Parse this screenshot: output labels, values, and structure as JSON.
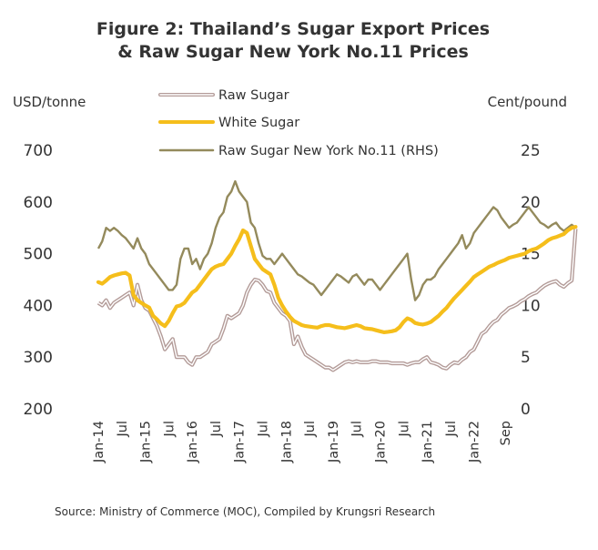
{
  "chart_data": {
    "type": "line",
    "title": "Figure 2: Thailand’s Sugar Export Prices",
    "title_line2": "& Raw Sugar New York No.11 Prices",
    "y_left_label": "USD/tonne",
    "y_right_label": "Cent/pound",
    "y_left_lim": [
      200,
      700
    ],
    "y_left_ticks": [
      "200",
      "300",
      "400",
      "500",
      "600",
      "700"
    ],
    "y_right_lim": [
      0,
      25
    ],
    "y_right_ticks": [
      "0",
      "5",
      "10",
      "15",
      "20",
      "25"
    ],
    "x_tick_labels": [
      "Jan-14",
      "Jul",
      "Jan-15",
      "Jul",
      "Jan-16",
      "Jul",
      "Jan-17",
      "Jul",
      "Jan-18",
      "Jul",
      "Jan-19",
      "Jul",
      "Jan-20",
      "Jul",
      "Jan-21",
      "Jul",
      "Jan-22",
      "Sep"
    ],
    "x_start": "2014-01",
    "x_end": "2022-09",
    "legend_position": "top-center",
    "grid": false,
    "source": "Source: Ministry of Commerce (MOC), Compiled by Krungsri Research",
    "colors": {
      "raw": "#b39b98",
      "white": "#f5be1b",
      "ny11": "#948a5c",
      "text": "#333333"
    },
    "series": [
      {
        "name": "Raw Sugar",
        "axis": "left",
        "style": "double-line",
        "values": [
          405,
          400,
          410,
          395,
          405,
          410,
          415,
          420,
          425,
          400,
          440,
          410,
          395,
          390,
          375,
          360,
          340,
          315,
          325,
          335,
          300,
          300,
          300,
          290,
          285,
          300,
          300,
          305,
          310,
          325,
          330,
          335,
          355,
          380,
          375,
          380,
          385,
          400,
          425,
          440,
          450,
          448,
          440,
          428,
          425,
          405,
          395,
          385,
          380,
          370,
          325,
          340,
          320,
          305,
          300,
          295,
          290,
          285,
          280,
          280,
          275,
          280,
          285,
          290,
          292,
          290,
          292,
          290,
          290,
          290,
          292,
          292,
          290,
          290,
          290,
          288,
          288,
          288,
          288,
          285,
          288,
          290,
          290,
          296,
          300,
          290,
          288,
          285,
          280,
          278,
          285,
          290,
          288,
          295,
          300,
          310,
          315,
          330,
          345,
          350,
          360,
          368,
          372,
          382,
          388,
          395,
          398,
          402,
          408,
          412,
          418,
          422,
          425,
          432,
          438,
          442,
          445,
          447,
          440,
          436,
          443,
          448,
          548
        ]
      },
      {
        "name": "White Sugar",
        "axis": "left",
        "style": "thick",
        "values": [
          445,
          442,
          448,
          455,
          458,
          460,
          462,
          463,
          458,
          420,
          410,
          405,
          400,
          396,
          380,
          373,
          365,
          360,
          370,
          385,
          398,
          400,
          405,
          415,
          425,
          430,
          440,
          450,
          460,
          470,
          475,
          478,
          480,
          490,
          500,
          515,
          528,
          545,
          540,
          515,
          490,
          480,
          470,
          465,
          460,
          440,
          415,
          400,
          388,
          378,
          370,
          366,
          362,
          360,
          359,
          358,
          357,
          360,
          362,
          362,
          360,
          358,
          357,
          356,
          358,
          360,
          362,
          360,
          356,
          355,
          354,
          352,
          350,
          348,
          349,
          350,
          352,
          358,
          368,
          375,
          372,
          366,
          364,
          363,
          365,
          368,
          374,
          380,
          388,
          395,
          405,
          414,
          422,
          430,
          438,
          446,
          455,
          460,
          465,
          470,
          475,
          478,
          482,
          485,
          488,
          492,
          494,
          496,
          498,
          500,
          505,
          508,
          510,
          515,
          520,
          526,
          530,
          532,
          535,
          538,
          545,
          550,
          552
        ]
      },
      {
        "name": "Raw Sugar New York No.11 (RHS)",
        "axis": "right",
        "style": "line",
        "values": [
          15.5,
          16.2,
          17.5,
          17.2,
          17.5,
          17.2,
          16.8,
          16.5,
          16.0,
          15.5,
          16.5,
          15.5,
          15.0,
          14.0,
          13.5,
          13.0,
          12.5,
          12.0,
          11.5,
          11.5,
          12.0,
          14.5,
          15.5,
          15.5,
          14.0,
          14.5,
          13.5,
          14.5,
          15.0,
          16.0,
          17.5,
          18.5,
          19.0,
          20.5,
          21.0,
          22.0,
          21.0,
          20.5,
          20.0,
          18.0,
          17.5,
          16.0,
          14.8,
          14.5,
          14.5,
          14.0,
          14.5,
          15.0,
          14.5,
          14.0,
          13.5,
          13.0,
          12.8,
          12.5,
          12.2,
          12.0,
          11.5,
          11.0,
          11.5,
          12.0,
          12.5,
          13.0,
          12.8,
          12.5,
          12.2,
          12.8,
          13.0,
          12.5,
          12.0,
          12.5,
          12.5,
          12.0,
          11.5,
          12.0,
          12.5,
          13.0,
          13.5,
          14.0,
          14.5,
          15.0,
          12.5,
          10.5,
          11.0,
          12.0,
          12.5,
          12.5,
          12.8,
          13.5,
          14.0,
          14.5,
          15.0,
          15.5,
          16.0,
          16.8,
          15.5,
          16.0,
          17.0,
          17.5,
          18.0,
          18.5,
          19.0,
          19.5,
          19.2,
          18.5,
          18.0,
          17.5,
          17.8,
          18.0,
          18.5,
          19.0,
          19.5,
          19.0,
          18.5,
          18.0,
          17.8,
          17.5,
          17.8,
          18.0,
          17.5,
          17.2,
          17.5,
          17.8,
          17.5
        ]
      }
    ]
  }
}
